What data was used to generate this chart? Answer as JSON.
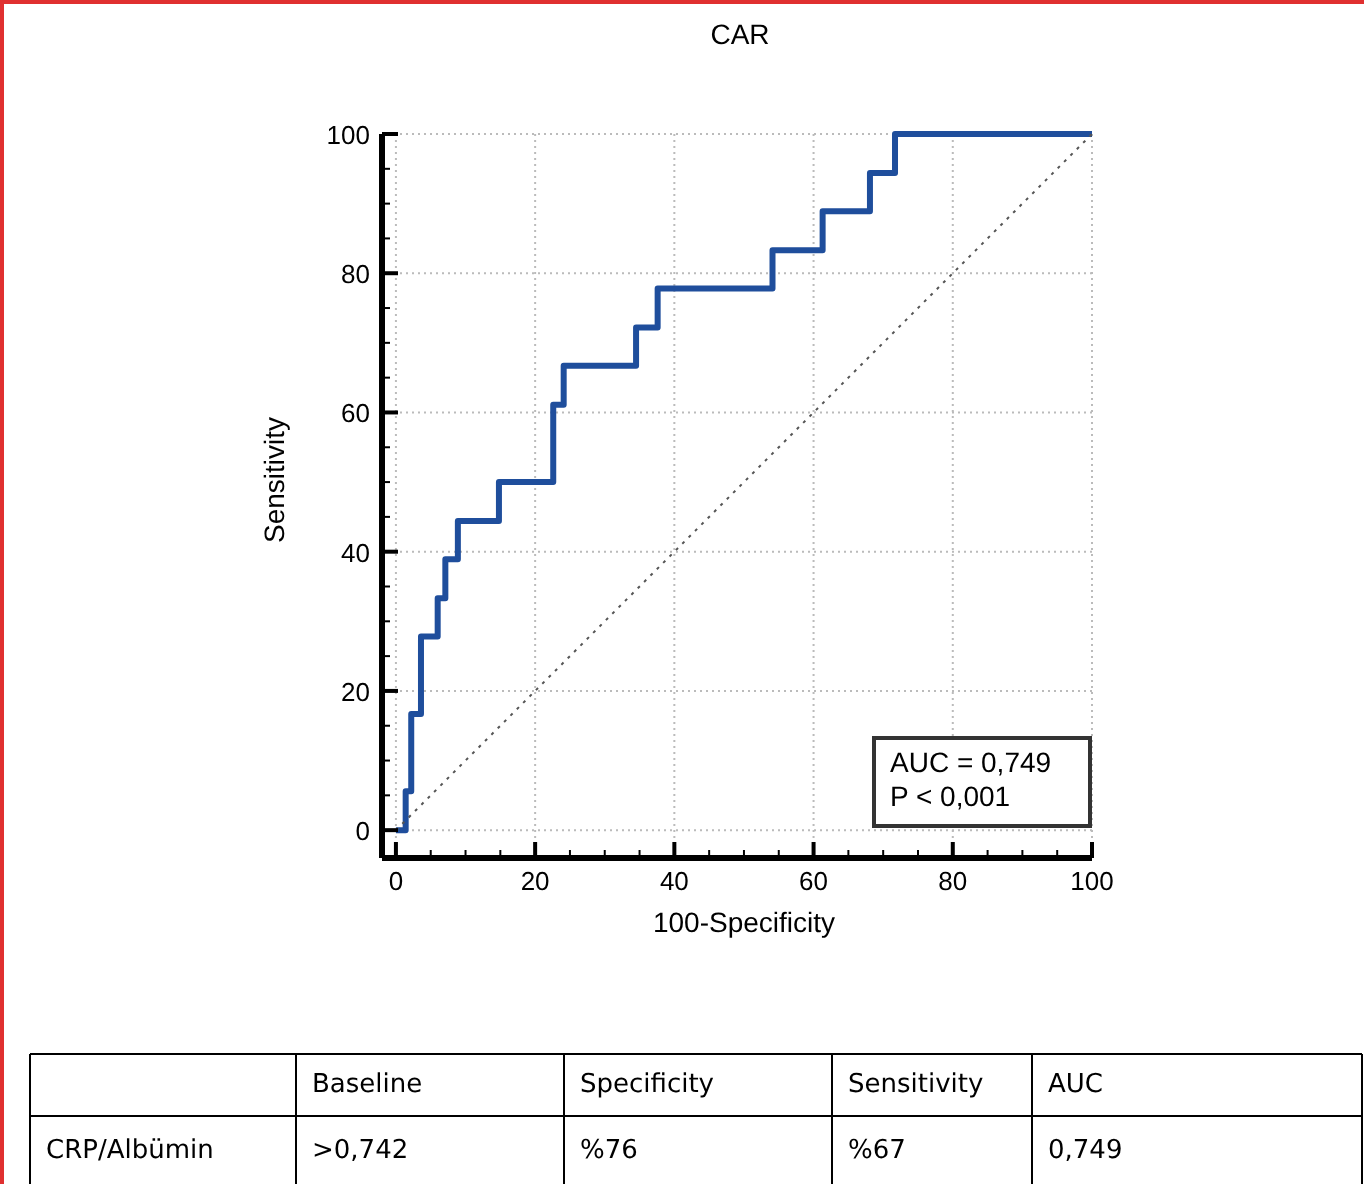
{
  "chart_data": [
    {
      "type": "line",
      "title": "CAR",
      "xlabel": "100-Specificity",
      "ylabel": "Sensitivity",
      "xlim": [
        -2,
        100
      ],
      "ylim": [
        -4,
        100
      ],
      "xticks": [
        0,
        {
          "value": 5,
          "label": null
        },
        {
          "value": 10,
          "label": null
        },
        {
          "value": 15,
          "label": null
        },
        20,
        {
          "value": 25,
          "label": null
        },
        {
          "value": 30,
          "label": null
        },
        {
          "value": 35,
          "label": null
        },
        40,
        {
          "value": 45,
          "label": null
        },
        {
          "value": 50,
          "label": null
        },
        {
          "value": 55,
          "label": null
        },
        60,
        {
          "value": 65,
          "label": null
        },
        {
          "value": 70,
          "label": null
        },
        {
          "value": 75,
          "label": null
        },
        80,
        {
          "value": 85,
          "label": null
        },
        {
          "value": 90,
          "label": null
        },
        {
          "value": 95,
          "label": null
        },
        100
      ],
      "yticks": [
        0,
        {
          "value": 5,
          "label": null
        },
        {
          "value": 10,
          "label": null
        },
        {
          "value": 15,
          "label": null
        },
        20,
        {
          "value": 25,
          "label": null
        },
        {
          "value": 30,
          "label": null
        },
        {
          "value": 35,
          "label": null
        },
        40,
        {
          "value": 45,
          "label": null
        },
        {
          "value": 50,
          "label": null
        },
        {
          "value": 55,
          "label": null
        },
        60,
        {
          "value": 65,
          "label": null
        },
        {
          "value": 70,
          "label": null
        },
        {
          "value": 75,
          "label": null
        },
        80,
        {
          "value": 85,
          "label": null
        },
        {
          "value": 90,
          "label": null
        },
        {
          "value": 95,
          "label": null
        },
        100
      ],
      "grid": true,
      "series": [
        {
          "color": "#1f4e9c",
          "line_style": "solid",
          "x": [
            0,
            1.4,
            1.4,
            2.2,
            2.2,
            3.6,
            3.6,
            6,
            6,
            7.1,
            7.1,
            8.9,
            8.9,
            14.8,
            14.8,
            22.6,
            22.6,
            24.1,
            24.1,
            34.5,
            34.5,
            37.6,
            37.6,
            54.1,
            54.1,
            61.3,
            61.3,
            68.1,
            68.1,
            71.7,
            71.7,
            100
          ],
          "values": [
            0,
            0,
            5.6,
            5.6,
            16.7,
            16.7,
            27.8,
            27.8,
            33.3,
            33.3,
            38.9,
            38.9,
            44.4,
            44.4,
            50,
            50,
            61.1,
            61.1,
            66.7,
            66.7,
            72.2,
            72.2,
            77.8,
            77.8,
            83.3,
            83.3,
            88.9,
            88.9,
            94.4,
            94.4,
            100,
            100
          ]
        },
        {
          "color": "#555555",
          "line_style": "dotted",
          "x": [
            0,
            100
          ],
          "values": [
            0,
            100
          ]
        }
      ],
      "annotations": [
        "AUC = 0,749",
        "P < 0,001"
      ]
    },
    {
      "type": "other",
      "categories": [
        null,
        "Baseline",
        "Specificity",
        "Sensitivity",
        "AUC"
      ],
      "annotations": [
        "CRP/Albümin",
        ">0,742",
        "%76",
        "%67",
        "0,749"
      ]
    }
  ]
}
